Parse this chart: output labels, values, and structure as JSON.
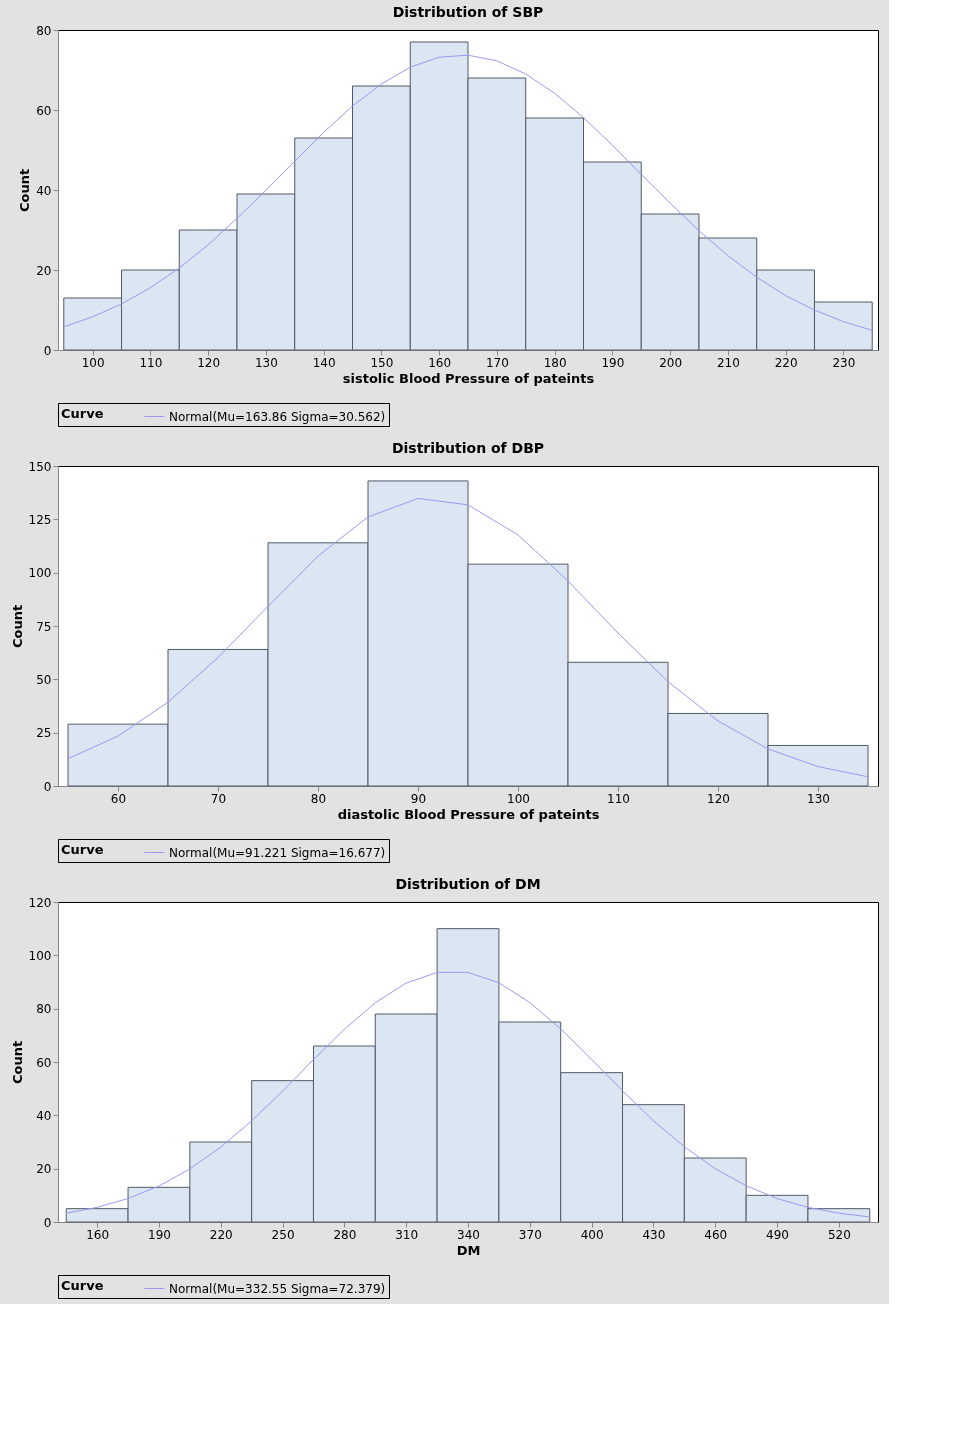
{
  "chart_data": [
    {
      "type": "histogram",
      "title": "Distribution of SBP",
      "xlabel": "sistolic Blood Pressure of pateints",
      "ylabel": "Count",
      "legend_title": "Curve",
      "legend": "bottom",
      "color": "#dce5f2",
      "bins": [
        95,
        105,
        115,
        125,
        135,
        145,
        155,
        165,
        175,
        185,
        195,
        205,
        215,
        225,
        235
      ],
      "values": [
        13,
        20,
        30,
        39,
        53,
        66,
        77,
        68,
        58,
        47,
        34,
        28,
        20,
        12
      ],
      "xlim": [
        94,
        236
      ],
      "ylim": [
        0,
        80
      ],
      "xticks": [
        100,
        110,
        120,
        130,
        140,
        150,
        160,
        170,
        180,
        190,
        200,
        210,
        220,
        230
      ],
      "yticks": [
        0,
        20,
        40,
        60,
        80
      ],
      "series": [
        {
          "name": "Normal(Mu=163.86 Sigma=30.562)",
          "type": "line",
          "color": "#9a9af0",
          "x": [
            95,
            100,
            105,
            110,
            115,
            120,
            125,
            130,
            135,
            140,
            145,
            150,
            155,
            160,
            165,
            170,
            175,
            180,
            185,
            190,
            195,
            200,
            205,
            210,
            215,
            220,
            225,
            230,
            235
          ],
          "values": [
            5.8,
            8.3,
            11.5,
            15.6,
            20.5,
            26.3,
            32.9,
            39.9,
            47.2,
            54.4,
            61.0,
            66.5,
            70.7,
            73.2,
            73.7,
            72.3,
            69.0,
            64.2,
            58.1,
            51.2,
            43.9,
            36.7,
            29.8,
            23.6,
            18.2,
            13.6,
            10.0,
            7.1,
            4.9
          ]
        }
      ]
    },
    {
      "type": "histogram",
      "title": "Distribution of DBP",
      "xlabel": "diastolic Blood Pressure of pateints",
      "ylabel": "Count",
      "legend_title": "Curve",
      "legend": "bottom",
      "color": "#dce5f2",
      "bins": [
        55,
        65,
        75,
        85,
        95,
        105,
        115,
        125,
        135
      ],
      "values": [
        29,
        64,
        114,
        143,
        104,
        58,
        34,
        19
      ],
      "xlim": [
        54,
        136
      ],
      "ylim": [
        0,
        150
      ],
      "xticks": [
        60,
        70,
        80,
        90,
        100,
        110,
        120,
        130
      ],
      "yticks": [
        0,
        25,
        50,
        75,
        100,
        125,
        150
      ],
      "series": [
        {
          "name": "Normal(Mu=91.221 Sigma=16.677)",
          "type": "line",
          "color": "#9a9af0",
          "x": [
            55,
            60,
            65,
            70,
            75,
            80,
            85,
            90,
            95,
            100,
            105,
            110,
            115,
            120,
            125,
            130,
            135
          ],
          "values": [
            12.8,
            23.4,
            39.3,
            60.2,
            84.2,
            107.8,
            126.1,
            134.8,
            131.8,
            117.7,
            96.1,
            71.7,
            48.9,
            30.5,
            17.4,
            9.1,
            4.3
          ]
        }
      ]
    },
    {
      "type": "histogram",
      "title": "Distribution of DM",
      "xlabel": "DM",
      "ylabel": "Count",
      "legend_title": "Curve",
      "legend": "bottom",
      "color": "#dce5f2",
      "bins": [
        145,
        175,
        205,
        235,
        265,
        295,
        325,
        355,
        385,
        415,
        445,
        475,
        505,
        535
      ],
      "values": [
        5,
        13,
        30,
        53,
        66,
        78,
        110,
        75,
        56,
        44,
        24,
        10,
        5
      ],
      "xlim": [
        141,
        539
      ],
      "ylim": [
        0,
        120
      ],
      "xticks": [
        160,
        190,
        220,
        250,
        280,
        310,
        340,
        370,
        400,
        430,
        460,
        490,
        520
      ],
      "yticks": [
        0,
        20,
        40,
        60,
        80,
        100,
        120
      ],
      "series": [
        {
          "name": "Normal(Mu=332.55 Sigma=72.379)",
          "type": "line",
          "color": "#9a9af0",
          "x": [
            145,
            160,
            175,
            190,
            205,
            220,
            235,
            250,
            265,
            280,
            295,
            310,
            325,
            340,
            355,
            370,
            385,
            400,
            415,
            430,
            445,
            460,
            475,
            490,
            505,
            520,
            535
          ],
          "values": [
            3.3,
            5.5,
            8.8,
            13.5,
            19.9,
            28.1,
            37.9,
            49.1,
            60.9,
            72.3,
            82.2,
            89.6,
            93.6,
            93.6,
            89.7,
            82.3,
            72.4,
            61.0,
            49.2,
            38.0,
            28.2,
            20.0,
            13.6,
            8.8,
            5.5,
            3.3,
            1.9
          ]
        }
      ]
    }
  ]
}
